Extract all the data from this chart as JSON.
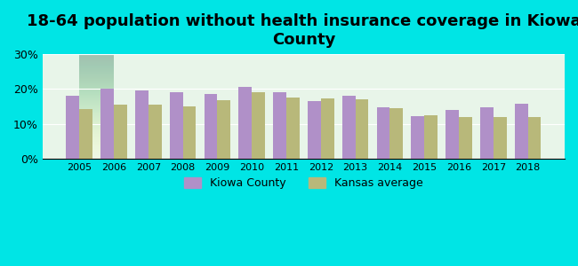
{
  "title": "18-64 population without health insurance coverage in Kiowa\nCounty",
  "years": [
    2005,
    2006,
    2007,
    2008,
    2009,
    2010,
    2011,
    2012,
    2013,
    2014,
    2015,
    2016,
    2017,
    2018
  ],
  "kiowa": [
    18.0,
    20.2,
    19.5,
    19.0,
    18.7,
    20.7,
    19.0,
    16.5,
    18.0,
    14.8,
    12.3,
    14.1,
    14.8,
    15.8
  ],
  "kansas": [
    14.4,
    15.6,
    15.6,
    15.0,
    16.8,
    19.0,
    17.6,
    17.2,
    17.0,
    14.5,
    12.6,
    11.9,
    12.0,
    12.0
  ],
  "kiowa_color": "#b090c8",
  "kansas_color": "#b8b87a",
  "background_outer": "#00e5e5",
  "background_inner_top": "#e8f5e9",
  "background_inner_bottom": "#f5ffe8",
  "title_fontsize": 13,
  "legend_labels": [
    "Kiowa County",
    "Kansas average"
  ],
  "ylim": [
    0,
    30
  ],
  "yticks": [
    0,
    10,
    20,
    30
  ],
  "ytick_labels": [
    "0%",
    "10%",
    "20%",
    "30%"
  ]
}
